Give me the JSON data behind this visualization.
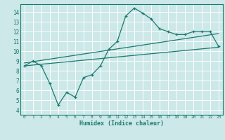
{
  "background_color": "#cce8e8",
  "grid_color": "#ffffff",
  "line_color": "#1a7a6e",
  "xlabel": "Humidex (Indice chaleur)",
  "xlim": [
    -0.5,
    23.5
  ],
  "ylim": [
    3.5,
    14.8
  ],
  "xticks": [
    0,
    1,
    2,
    3,
    4,
    5,
    6,
    7,
    8,
    9,
    10,
    11,
    12,
    13,
    14,
    15,
    16,
    17,
    18,
    19,
    20,
    21,
    22,
    23
  ],
  "yticks": [
    4,
    5,
    6,
    7,
    8,
    9,
    10,
    11,
    12,
    13,
    14
  ],
  "series1_x": [
    0,
    1,
    2,
    3,
    4,
    5,
    6,
    7,
    8,
    9,
    10,
    11,
    12,
    13,
    14,
    15,
    16,
    17,
    18,
    19,
    20,
    21,
    22,
    23
  ],
  "series1_y": [
    8.5,
    9.0,
    8.5,
    6.7,
    4.5,
    5.8,
    5.3,
    7.3,
    7.6,
    8.5,
    10.2,
    11.0,
    13.6,
    14.4,
    13.9,
    13.3,
    12.3,
    12.0,
    11.7,
    11.7,
    12.0,
    12.0,
    12.0,
    10.5
  ],
  "series2_x": [
    0,
    23
  ],
  "series2_y": [
    8.5,
    10.4
  ],
  "series3_x": [
    0,
    23
  ],
  "series3_y": [
    8.8,
    11.8
  ]
}
